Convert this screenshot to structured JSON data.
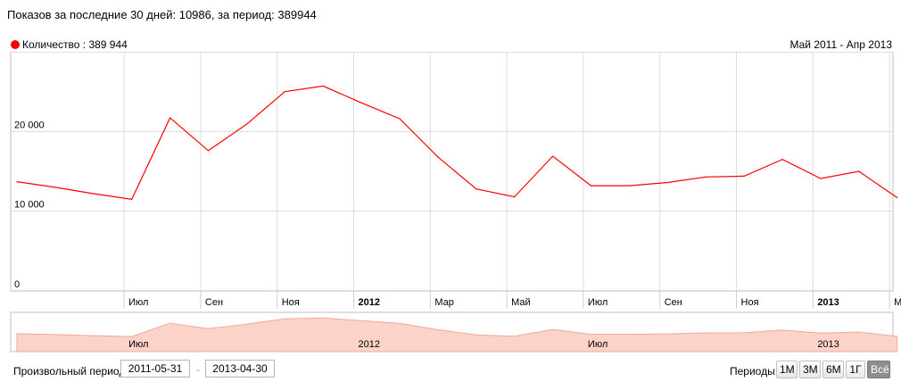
{
  "header": {
    "text": "Показов за последние 30 дней: 10986, за период: 389944"
  },
  "legend": {
    "label": "Количество : 389 944",
    "color": "#ff0000"
  },
  "range_label": "Май 2011 - Апр 2013",
  "controls": {
    "custom_period_label": "Произвольный период:",
    "date_from": "2011-05-31",
    "date_to": "2013-04-30",
    "separator": "-",
    "periods_label": "Периоды:",
    "period_buttons": [
      {
        "label": "1М",
        "active": false
      },
      {
        "label": "3М",
        "active": false
      },
      {
        "label": "6М",
        "active": false
      },
      {
        "label": "1Г",
        "active": false
      },
      {
        "label": "Всё",
        "active": true
      }
    ]
  },
  "chart_data": {
    "type": "line",
    "series": [
      {
        "name": "Количество",
        "color": "#ff0000",
        "x": [
          "2011-05",
          "2011-06",
          "2011-07",
          "2011-08",
          "2011-09",
          "2011-10",
          "2011-11",
          "2011-12",
          "2012-01",
          "2012-02",
          "2012-03",
          "2012-04",
          "2012-05",
          "2012-06",
          "2012-07",
          "2012-08",
          "2012-09",
          "2012-10",
          "2012-11",
          "2012-12",
          "2013-01",
          "2013-02",
          "2013-03",
          "2013-04"
        ],
        "values": [
          13700,
          13000,
          12200,
          11500,
          21700,
          17600,
          20900,
          25000,
          25700,
          23600,
          21600,
          16800,
          12800,
          11800,
          16900,
          13200,
          13200,
          13600,
          14300,
          14400,
          16500,
          14100,
          15000,
          11700
        ]
      }
    ],
    "ylim": [
      0,
      30000
    ],
    "y_ticks": [
      {
        "value": 0,
        "label": "0"
      },
      {
        "value": 10000,
        "label": "10 000"
      },
      {
        "value": 20000,
        "label": "20 000"
      }
    ],
    "x_ticks": [
      {
        "month": "2011-07",
        "label": "Июл",
        "bold": false
      },
      {
        "month": "2011-09",
        "label": "Сен",
        "bold": false
      },
      {
        "month": "2011-11",
        "label": "Ноя",
        "bold": false
      },
      {
        "month": "2012-01",
        "label": "2012",
        "bold": true
      },
      {
        "month": "2012-03",
        "label": "Мар",
        "bold": false
      },
      {
        "month": "2012-05",
        "label": "Май",
        "bold": false
      },
      {
        "month": "2012-07",
        "label": "Июл",
        "bold": false
      },
      {
        "month": "2012-09",
        "label": "Сен",
        "bold": false
      },
      {
        "month": "2012-11",
        "label": "Ноя",
        "bold": false
      },
      {
        "month": "2013-01",
        "label": "2013",
        "bold": true
      },
      {
        "month": "2013-03",
        "label": "Мар",
        "bold": false
      }
    ],
    "navigator_labels": [
      {
        "month": "2011-07",
        "label": "Июл"
      },
      {
        "month": "2012-01",
        "label": "2012"
      },
      {
        "month": "2012-07",
        "label": "Июл"
      },
      {
        "month": "2013-01",
        "label": "2013"
      }
    ],
    "grid": true,
    "legend_position": "top-left"
  }
}
